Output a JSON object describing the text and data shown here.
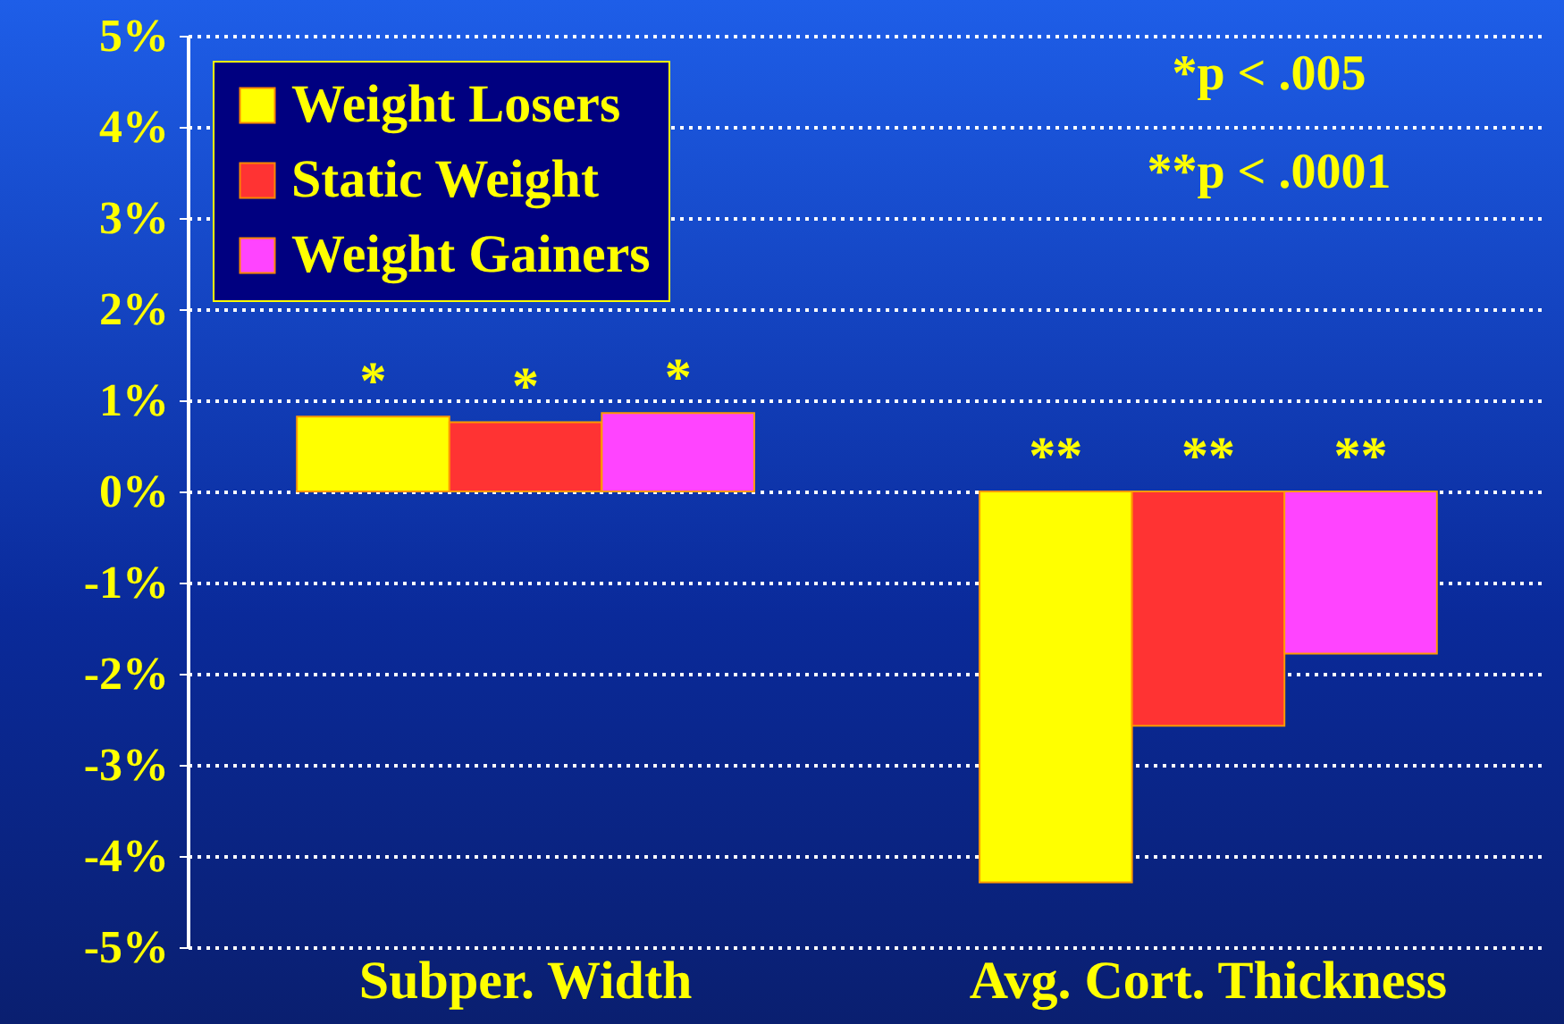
{
  "chart_data": {
    "type": "bar",
    "categories": [
      "Subper. Width",
      "Avg. Cort. Thickness"
    ],
    "series": [
      {
        "name": "Weight Losers",
        "color": "#ffff00",
        "values": [
          0.82,
          -4.29
        ],
        "value_labels": [
          "*",
          "**"
        ]
      },
      {
        "name": "Static Weight",
        "color": "#ff3333",
        "values": [
          0.76,
          -2.57
        ],
        "value_labels": [
          "*",
          "**"
        ]
      },
      {
        "name": "Weight Gainers",
        "color": "#ff44ff",
        "values": [
          0.86,
          -1.78
        ],
        "value_labels": [
          "*",
          "**"
        ]
      }
    ],
    "ylim": [
      -5,
      5
    ],
    "yticks": [
      {
        "value": -5,
        "label": "-5%"
      },
      {
        "value": -4,
        "label": "-4%"
      },
      {
        "value": -3,
        "label": "-3%"
      },
      {
        "value": -2,
        "label": "-2%"
      },
      {
        "value": -1,
        "label": "-1%"
      },
      {
        "value": 0,
        "label": "0%"
      },
      {
        "value": 1,
        "label": "1%"
      },
      {
        "value": 2,
        "label": "2%"
      },
      {
        "value": 3,
        "label": "3%"
      },
      {
        "value": 4,
        "label": "4%"
      },
      {
        "value": 5,
        "label": "5%"
      }
    ],
    "grid": "y",
    "legend": "top left",
    "annotations": [
      "*p < .005",
      "**p < .0001"
    ]
  }
}
